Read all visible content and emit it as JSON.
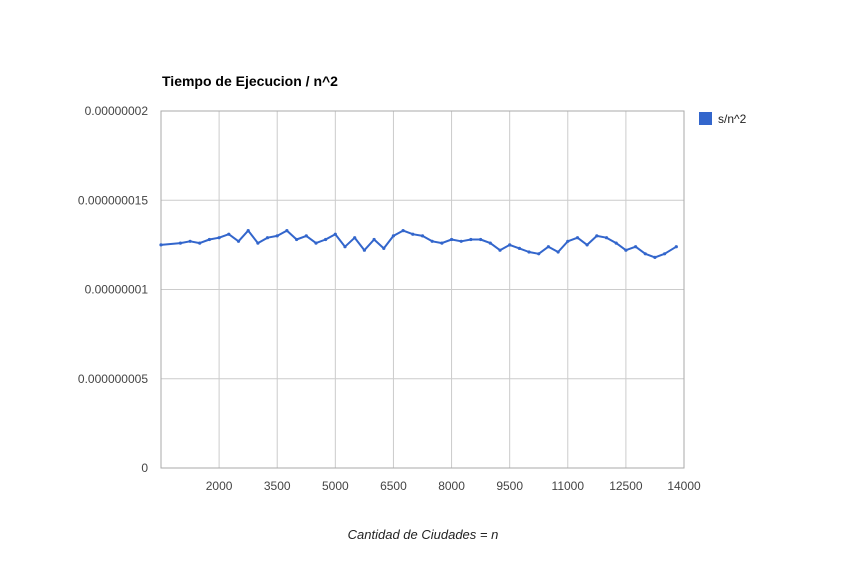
{
  "chart_data": {
    "type": "line",
    "title": "Tiempo de Ejecucion / n^2",
    "xlabel": "Cantidad de Ciudades = n",
    "ylabel": "",
    "xlim": [
      500,
      14000
    ],
    "ylim": [
      0,
      2e-08
    ],
    "x_ticks": [
      2000,
      3500,
      5000,
      6500,
      8000,
      9500,
      11000,
      12500,
      14000
    ],
    "x_tick_labels": [
      "2000",
      "3500",
      "5000",
      "6500",
      "8000",
      "9500",
      "11000",
      "12500",
      "14000"
    ],
    "y_ticks": [
      0,
      5e-09,
      1e-08,
      1.5e-08,
      2e-08
    ],
    "y_tick_labels": [
      "0",
      "0.000000005",
      "0.00000001",
      "0.000000015",
      "0.00000002"
    ],
    "grid": true,
    "legend": "right",
    "series": [
      {
        "name": "s/n^2",
        "color": "#3366cc",
        "x": [
          500,
          1000,
          1250,
          1500,
          1750,
          2000,
          2250,
          2500,
          2750,
          3000,
          3250,
          3500,
          3750,
          4000,
          4250,
          4500,
          4750,
          5000,
          5250,
          5500,
          5750,
          6000,
          6250,
          6500,
          6750,
          7000,
          7250,
          7500,
          7750,
          8000,
          8250,
          8500,
          8750,
          9000,
          9250,
          9500,
          9750,
          10000,
          10250,
          10500,
          10750,
          11000,
          11250,
          11500,
          11750,
          12000,
          12250,
          12500,
          12750,
          13000,
          13250,
          13500,
          13800
        ],
        "values": [
          1.25e-08,
          1.26e-08,
          1.27e-08,
          1.26e-08,
          1.28e-08,
          1.29e-08,
          1.31e-08,
          1.27e-08,
          1.33e-08,
          1.26e-08,
          1.29e-08,
          1.3e-08,
          1.33e-08,
          1.28e-08,
          1.3e-08,
          1.26e-08,
          1.28e-08,
          1.31e-08,
          1.24e-08,
          1.29e-08,
          1.22e-08,
          1.28e-08,
          1.23e-08,
          1.3e-08,
          1.33e-08,
          1.31e-08,
          1.3e-08,
          1.27e-08,
          1.26e-08,
          1.28e-08,
          1.27e-08,
          1.28e-08,
          1.28e-08,
          1.26e-08,
          1.22e-08,
          1.25e-08,
          1.23e-08,
          1.21e-08,
          1.2e-08,
          1.24e-08,
          1.21e-08,
          1.27e-08,
          1.29e-08,
          1.25e-08,
          1.3e-08,
          1.29e-08,
          1.26e-08,
          1.22e-08,
          1.24e-08,
          1.2e-08,
          1.18e-08,
          1.2e-08,
          1.24e-08
        ]
      }
    ]
  }
}
